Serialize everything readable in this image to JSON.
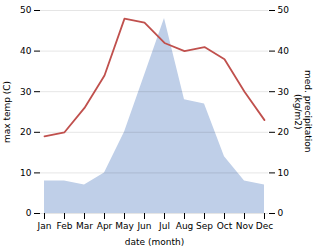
{
  "chart_data": {
    "type": "line",
    "xlabel": "date (month)",
    "ylabel": "max temp (C)",
    "y2label": "med. precipitation\n(kg/m2)",
    "categories": [
      "Jan",
      "Feb",
      "Mar",
      "Apr",
      "May",
      "Jun",
      "Jul",
      "Aug",
      "Sep",
      "Oct",
      "Nov",
      "Dec"
    ],
    "series": [
      {
        "type": "area",
        "color": "#bfcfe8",
        "axis": "y2",
        "values": [
          8,
          8,
          7,
          10,
          20,
          34,
          48,
          28,
          27,
          14,
          8,
          7
        ]
      },
      {
        "type": "line",
        "color": "#c0504d",
        "values": [
          19,
          20,
          26,
          34,
          48,
          47,
          42,
          40,
          41,
          38,
          30,
          23
        ]
      }
    ],
    "ylim": [
      0,
      50
    ],
    "yticks": [
      0,
      10,
      20,
      30,
      40,
      50
    ],
    "y2lim": [
      0,
      50
    ],
    "y2ticks": [
      0,
      10,
      20,
      30,
      40,
      50
    ],
    "grid": true
  }
}
